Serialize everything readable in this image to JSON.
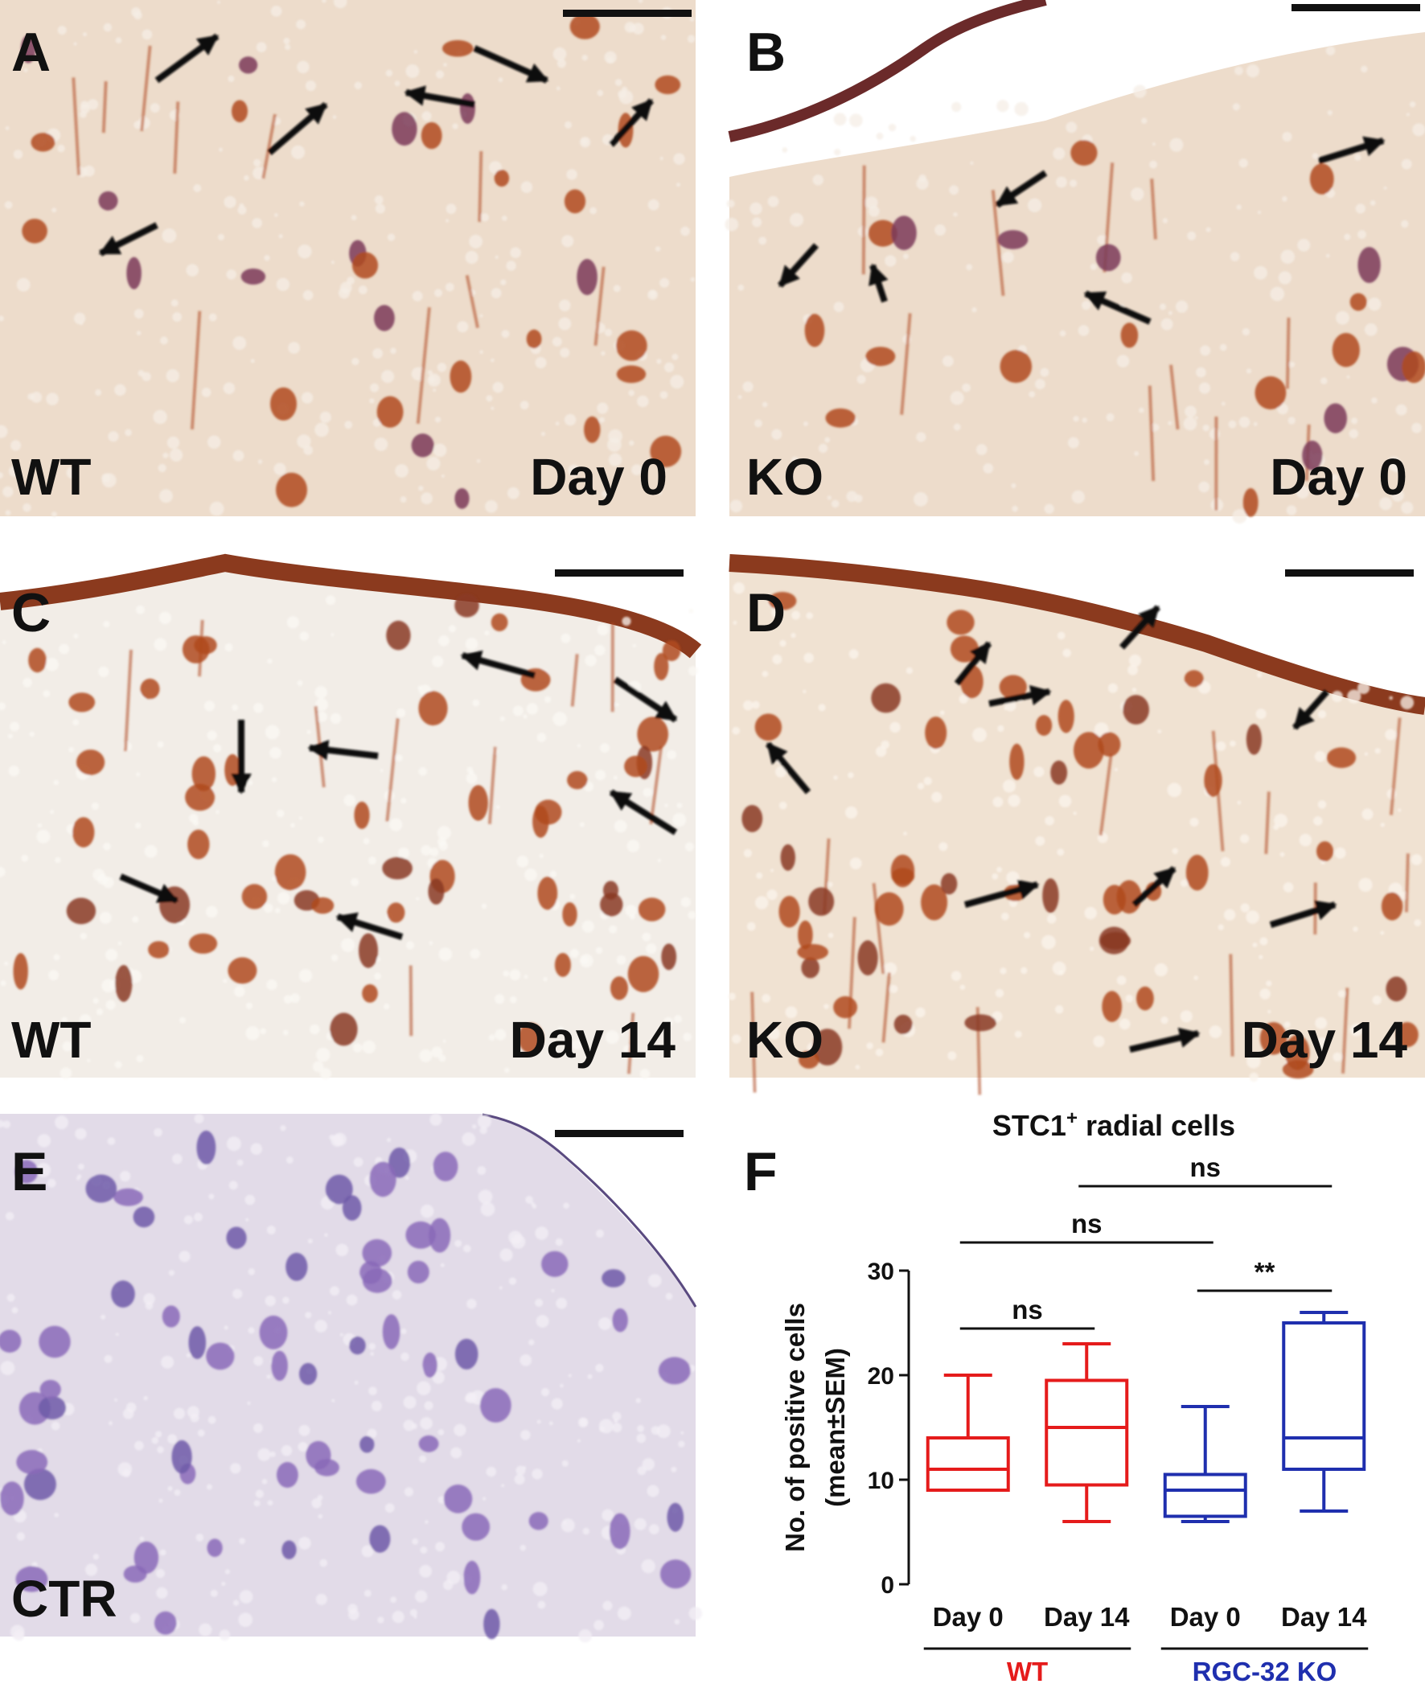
{
  "figure": {
    "panels": [
      {
        "id": "A",
        "letter": "A",
        "genotype": "WT",
        "timepoint": "Day 0",
        "stain": "brown"
      },
      {
        "id": "B",
        "letter": "B",
        "genotype": "KO",
        "timepoint": "Day 0",
        "stain": "brown"
      },
      {
        "id": "C",
        "letter": "C",
        "genotype": "WT",
        "timepoint": "Day 14",
        "stain": "brown"
      },
      {
        "id": "D",
        "letter": "D",
        "genotype": "KO",
        "timepoint": "Day 14",
        "stain": "brown"
      },
      {
        "id": "E",
        "letter": "E",
        "genotype": "CTR",
        "timepoint": "",
        "stain": "purple"
      }
    ],
    "colors": {
      "tissue_bg": "#eddccb",
      "brown_cell": "#b04a1f",
      "purple_cell": "#8a6ab8",
      "ctr_bg": "#e2dbe8",
      "wt": "#e51b1b",
      "ko": "#1f2fae"
    }
  },
  "chart_data": {
    "type": "box",
    "panel_letter": "F",
    "title": "STC1",
    "title_superscript": "+",
    "title_suffix": " radial cells",
    "ylabel_line1": "No. of positive cells",
    "ylabel_line2": "(mean±SEM)",
    "ylim": [
      0,
      30
    ],
    "yticks": [
      0,
      10,
      20,
      30
    ],
    "categories": [
      "Day 0",
      "Day 14",
      "Day 0",
      "Day 14"
    ],
    "groups": [
      {
        "name": "WT",
        "color": "#e51b1b",
        "categories": [
          0,
          1
        ]
      },
      {
        "name": "RGC-32 KO",
        "color": "#1f2fae",
        "categories": [
          2,
          3
        ]
      }
    ],
    "boxes": [
      {
        "min": 9,
        "q1": 9,
        "median": 11,
        "q3": 14,
        "max": 20,
        "color": "#e51b1b"
      },
      {
        "min": 6,
        "q1": 9.5,
        "median": 15,
        "q3": 19.5,
        "max": 23,
        "color": "#e51b1b"
      },
      {
        "min": 6,
        "q1": 6.5,
        "median": 9,
        "q3": 10.5,
        "max": 17,
        "color": "#1f2fae"
      },
      {
        "min": 7,
        "q1": 11,
        "median": 14,
        "q3": 25,
        "max": 26,
        "color": "#1f2fae"
      }
    ],
    "comparisons": [
      {
        "from": 0,
        "to": 1,
        "label": "ns"
      },
      {
        "from": 2,
        "to": 3,
        "label": "**"
      },
      {
        "from": 0,
        "to": 2,
        "label": "ns"
      },
      {
        "from": 1,
        "to": 3,
        "label": "ns"
      }
    ]
  }
}
